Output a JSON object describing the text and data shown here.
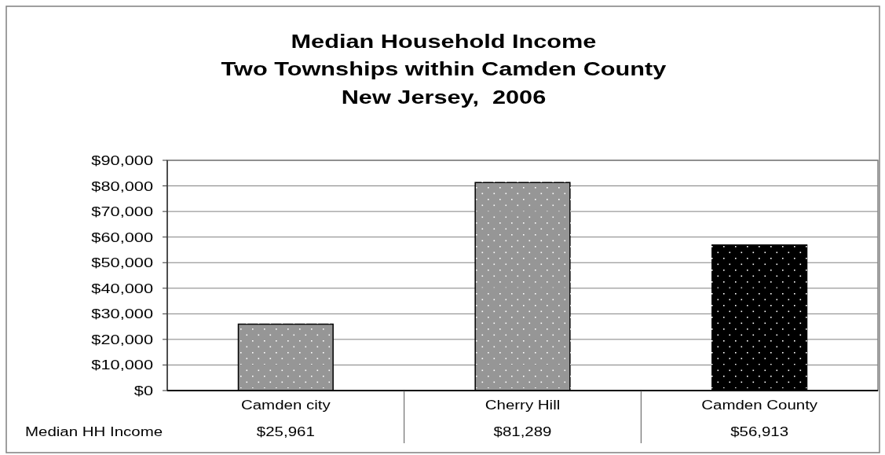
{
  "chart_data": {
    "type": "bar",
    "title": "Median Household Income\nTwo Townships within Camden County\nNew Jersey,  2006",
    "categories": [
      "Camden city",
      "Cherry Hill",
      "Camden County"
    ],
    "series": [
      {
        "name": "Median HH Income",
        "colors": [
          "#969696",
          "#969696",
          "#000000"
        ],
        "values": [
          25961,
          81289,
          56913
        ],
        "value_labels": [
          "$25,961",
          "$81,289",
          "$56,913"
        ]
      }
    ],
    "ylim": [
      0,
      90000
    ],
    "yticks": [
      {
        "value": 0,
        "label": "$0"
      },
      {
        "value": 10000,
        "label": "$10,000"
      },
      {
        "value": 20000,
        "label": "$20,000"
      },
      {
        "value": 30000,
        "label": "$30,000"
      },
      {
        "value": 40000,
        "label": "$40,000"
      },
      {
        "value": 50000,
        "label": "$50,000"
      },
      {
        "value": 60000,
        "label": "$60,000"
      },
      {
        "value": 70000,
        "label": "$70,000"
      },
      {
        "value": 80000,
        "label": "$80,000"
      },
      {
        "value": 90000,
        "label": "$90,000"
      }
    ],
    "grid": "y"
  }
}
